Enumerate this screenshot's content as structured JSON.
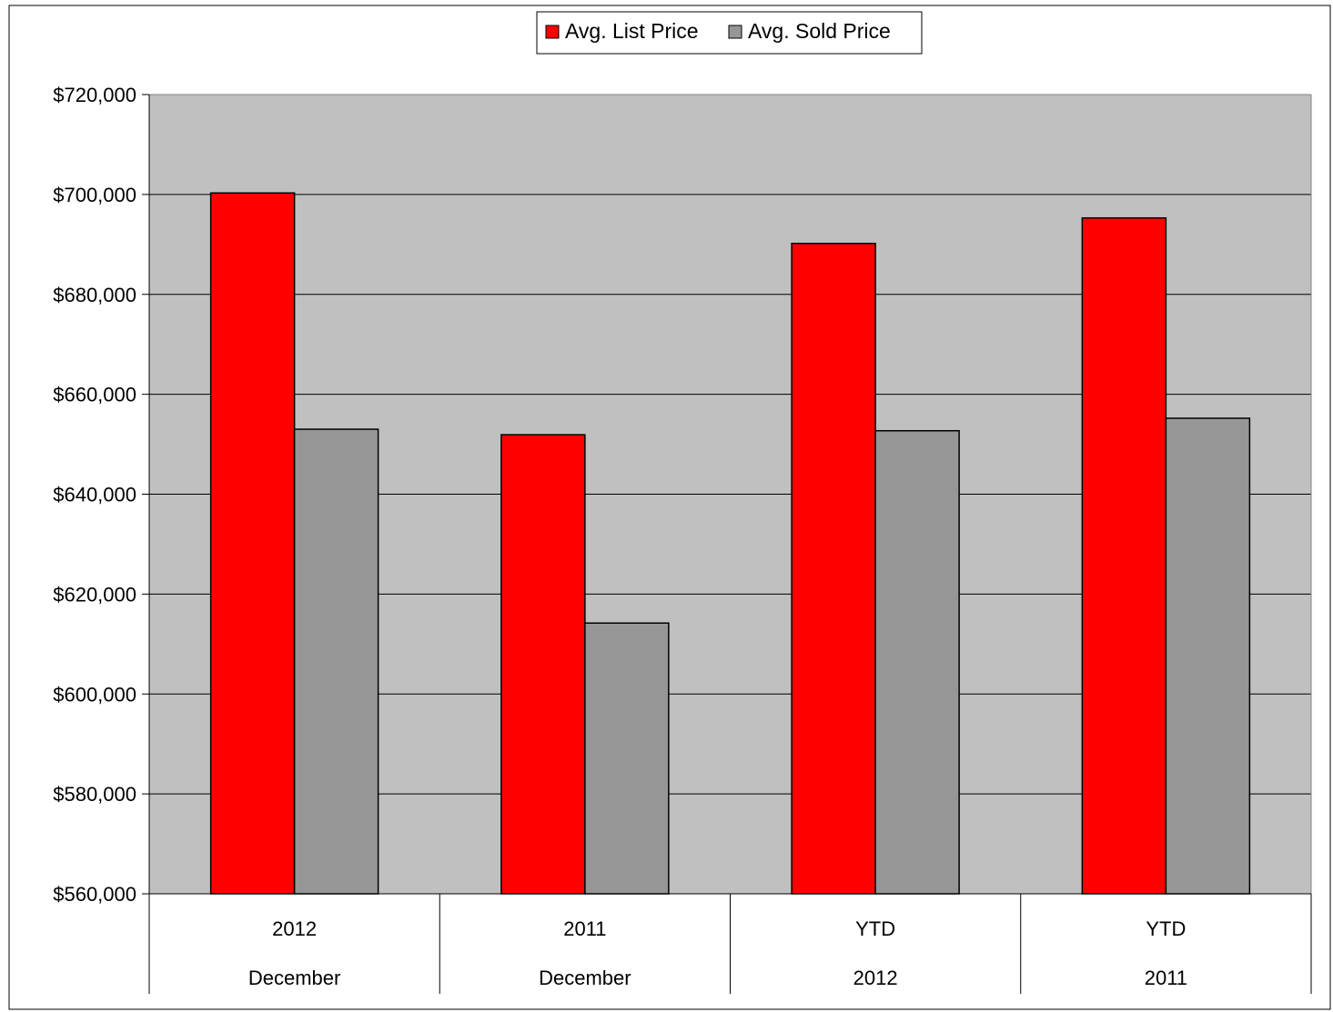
{
  "chart_data": {
    "type": "bar",
    "categories": [
      {
        "top": "2012",
        "bottom": "December"
      },
      {
        "top": "2011",
        "bottom": "December"
      },
      {
        "top": "YTD",
        "bottom": "2012"
      },
      {
        "top": "YTD",
        "bottom": "2011"
      }
    ],
    "series": [
      {
        "name": "Avg. List Price",
        "color": "#ff0000",
        "values": [
          700300,
          651900,
          690200,
          695300
        ]
      },
      {
        "name": "Avg. Sold Price",
        "color": "#969696",
        "values": [
          653000,
          614200,
          652700,
          655200
        ]
      }
    ],
    "ylim": [
      560000,
      720000
    ],
    "yticks": [
      560000,
      580000,
      600000,
      620000,
      640000,
      660000,
      680000,
      700000,
      720000
    ],
    "ytick_labels": [
      "$560,000",
      "$580,000",
      "$600,000",
      "$620,000",
      "$640,000",
      "$660,000",
      "$680,000",
      "$700,000",
      "$720,000"
    ],
    "grid": true,
    "plot_background": "#c0c0c0",
    "legend_position": "top-center",
    "title": "",
    "xlabel": "",
    "ylabel": ""
  }
}
